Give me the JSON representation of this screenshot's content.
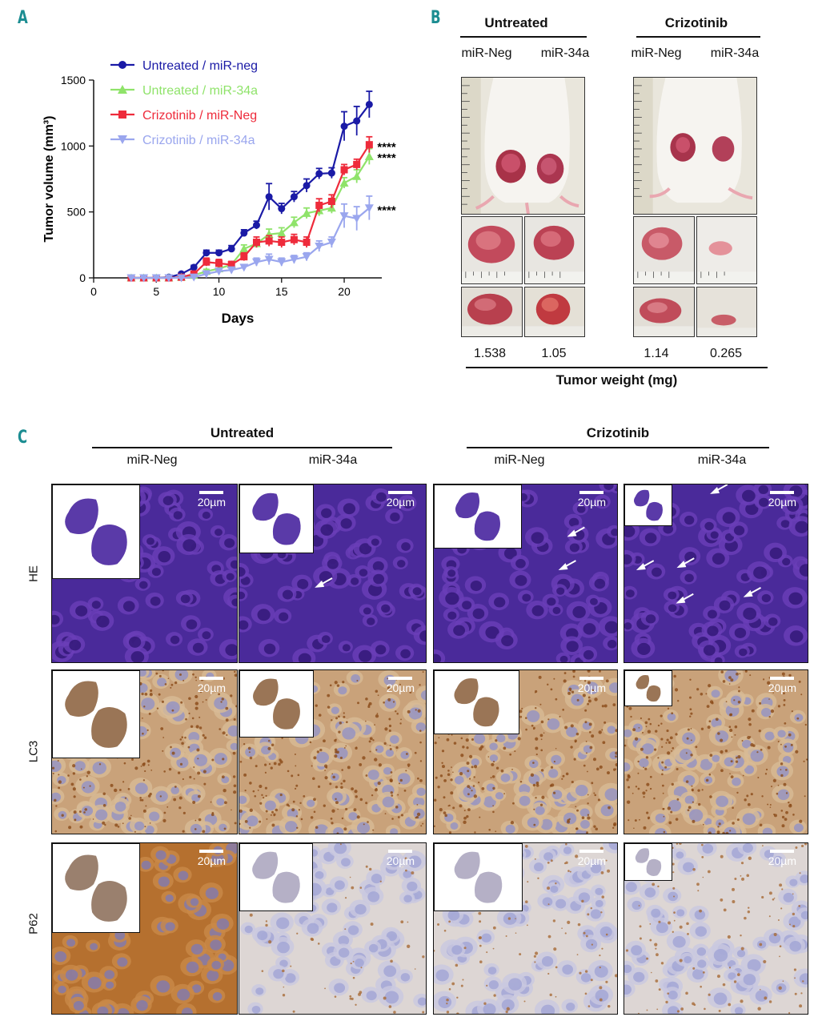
{
  "panels": {
    "a": "A",
    "b": "B",
    "c": "C"
  },
  "chart_data": {
    "type": "line",
    "xlabel": "Days",
    "ylabel": "Tumor volume (mm³)",
    "xlim": [
      0,
      23
    ],
    "ylim": [
      0,
      1500
    ],
    "xticks": [
      "0",
      "5",
      "10",
      "15",
      "20"
    ],
    "yticks": [
      "0",
      "500",
      "1000",
      "1500"
    ],
    "legend_position": "top-left",
    "series": [
      {
        "name": "Untreated / miR-neg",
        "color": "#1a1aa6",
        "marker": "circle",
        "x": [
          3,
          4,
          5,
          6,
          7,
          8,
          9,
          10,
          11,
          12,
          13,
          14,
          15,
          16,
          17,
          18,
          19,
          20,
          21,
          22
        ],
        "y": [
          0,
          0,
          0,
          5,
          30,
          80,
          190,
          190,
          220,
          340,
          400,
          615,
          525,
          615,
          700,
          790,
          795,
          1150,
          1190,
          1315
        ],
        "err": [
          0,
          0,
          0,
          0,
          10,
          15,
          20,
          20,
          25,
          25,
          30,
          100,
          40,
          40,
          50,
          40,
          40,
          110,
          110,
          100
        ]
      },
      {
        "name": "Untreated / miR-34a",
        "color": "#8fe36a",
        "marker": "triangle-up",
        "x": [
          3,
          4,
          5,
          6,
          7,
          8,
          9,
          10,
          11,
          12,
          13,
          14,
          15,
          16,
          17,
          18,
          19,
          20,
          21,
          22
        ],
        "y": [
          0,
          0,
          0,
          0,
          5,
          20,
          50,
          70,
          100,
          220,
          260,
          330,
          340,
          420,
          490,
          510,
          530,
          720,
          770,
          920
        ],
        "err": [
          0,
          0,
          0,
          0,
          5,
          10,
          15,
          20,
          20,
          30,
          30,
          40,
          40,
          40,
          40,
          40,
          40,
          40,
          50,
          60
        ]
      },
      {
        "name": "Crizotinib / miR-Neg",
        "color": "#ee2b3b",
        "marker": "square",
        "x": [
          3,
          4,
          5,
          6,
          7,
          8,
          9,
          10,
          11,
          12,
          13,
          14,
          15,
          16,
          17,
          18,
          19,
          20,
          21,
          22
        ],
        "y": [
          0,
          0,
          0,
          0,
          5,
          30,
          120,
          110,
          100,
          160,
          270,
          280,
          270,
          290,
          270,
          550,
          580,
          820,
          860,
          1010
        ],
        "err": [
          0,
          0,
          0,
          0,
          5,
          10,
          30,
          30,
          25,
          30,
          40,
          40,
          40,
          40,
          40,
          50,
          50,
          40,
          40,
          60
        ]
      },
      {
        "name": "Crizotinib / miR-34a",
        "color": "#9aa6ee",
        "marker": "triangle-down",
        "x": [
          3,
          4,
          5,
          6,
          7,
          8,
          9,
          10,
          11,
          12,
          13,
          14,
          15,
          16,
          17,
          18,
          19,
          20,
          21,
          22
        ],
        "y": [
          0,
          0,
          0,
          0,
          0,
          5,
          30,
          50,
          60,
          80,
          120,
          140,
          120,
          140,
          160,
          240,
          270,
          470,
          450,
          530
        ],
        "err": [
          0,
          0,
          0,
          0,
          0,
          5,
          15,
          20,
          20,
          20,
          30,
          40,
          30,
          30,
          30,
          40,
          40,
          90,
          90,
          90
        ]
      }
    ],
    "annotations": [
      "****",
      "****",
      "****"
    ]
  },
  "panel_b": {
    "group_untreated": "Untreated",
    "group_crizotinib": "Crizotinib",
    "col_labels": [
      "miR-Neg",
      "miR-34a",
      "miR-Neg",
      "miR-34a"
    ],
    "weights": [
      "1.538",
      "1.05",
      "1.14",
      "0.265"
    ],
    "footer": "Tumor weight (mg)"
  },
  "panel_c": {
    "group_untreated": "Untreated",
    "group_crizotinib": "Crizotinib",
    "col_labels": [
      "miR-Neg",
      "miR-34a",
      "miR-Neg",
      "miR-34a"
    ],
    "row_labels": [
      "HE",
      "LC3",
      "P62"
    ],
    "scale_bar": "20µm"
  },
  "colors": {
    "he_bg": "#5b2fa8",
    "ihc_bg": "#c9a57a",
    "p62_strong": "#b36a2a"
  }
}
